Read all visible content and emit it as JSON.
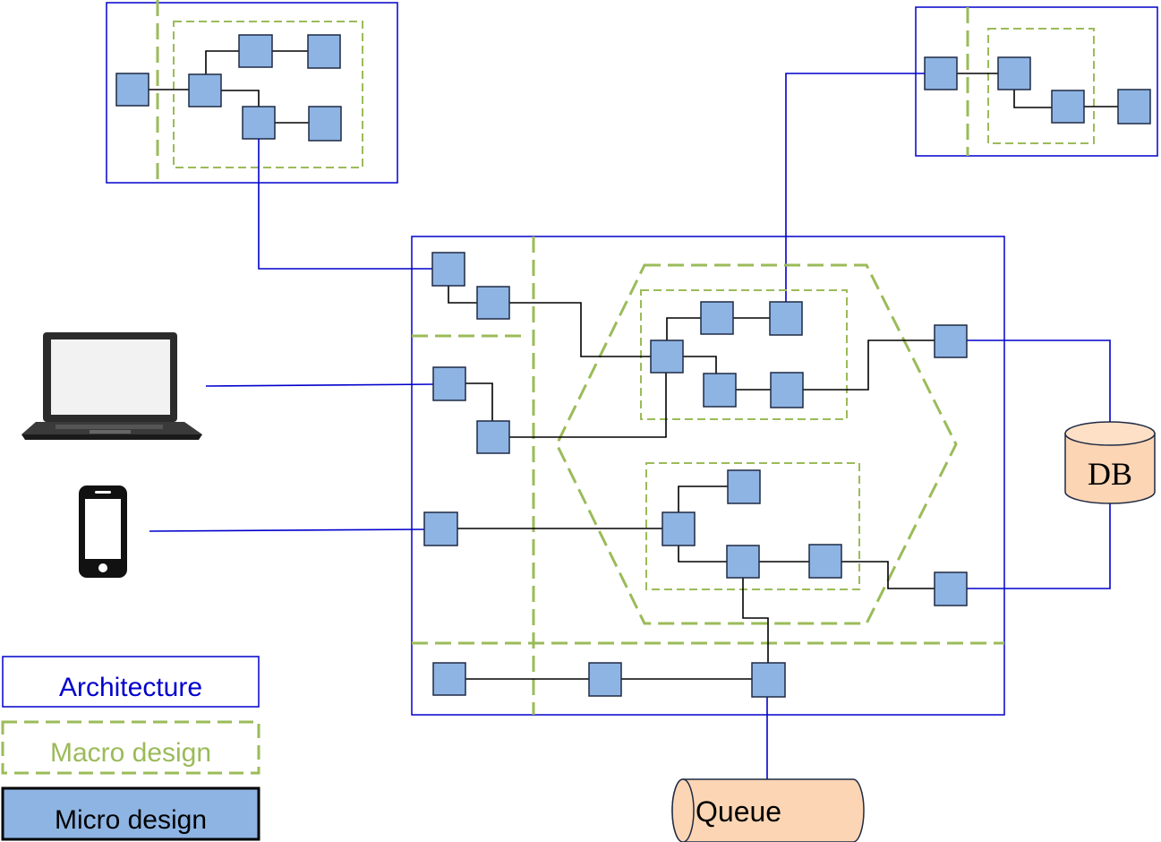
{
  "legend": {
    "architecture": "Architecture",
    "macro": "Macro design",
    "micro": "Micro design"
  },
  "stores": {
    "db": "DB",
    "queue": "Queue"
  },
  "colors": {
    "architecture": "#0000cc",
    "macro": "#9bbb59",
    "micro_fill": "#8eb4e3",
    "store_fill": "#fcd5b4"
  },
  "icons": [
    "laptop-icon",
    "smartphone-icon"
  ]
}
